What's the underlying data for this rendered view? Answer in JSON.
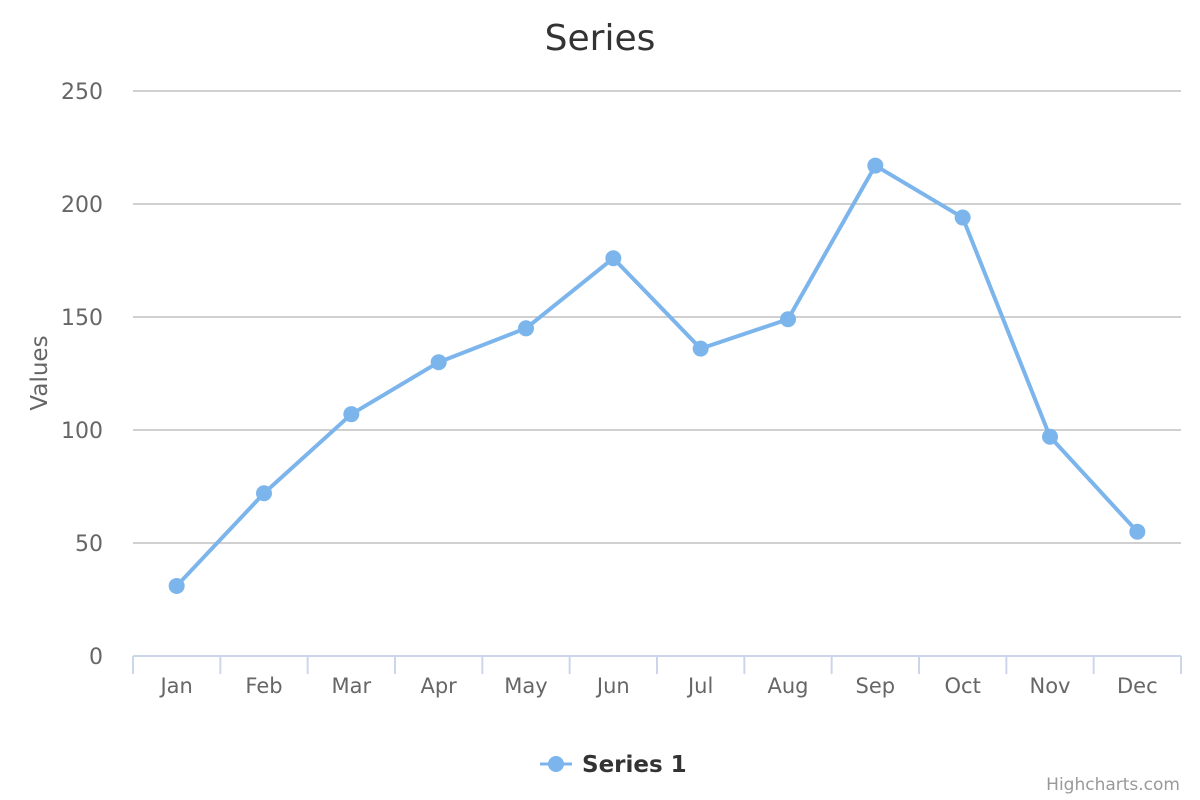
{
  "chart_data": {
    "type": "line",
    "title": "Series",
    "xlabel": "",
    "ylabel": "Values",
    "categories": [
      "Jan",
      "Feb",
      "Mar",
      "Apr",
      "May",
      "Jun",
      "Jul",
      "Aug",
      "Sep",
      "Oct",
      "Nov",
      "Dec"
    ],
    "ylim": [
      0,
      250
    ],
    "yticks": [
      0,
      50,
      100,
      150,
      200,
      250
    ],
    "grid": true,
    "legend_position": "bottom-center",
    "series": [
      {
        "name": "Series 1",
        "color": "#7cb5ec",
        "values": [
          31,
          72,
          107,
          130,
          145,
          176,
          136,
          149,
          217,
          194,
          97,
          55
        ]
      }
    ]
  },
  "credits": "Highcharts.com",
  "colors": {
    "gridline": "#c0c0c0",
    "axis_line": "#ccd6eb",
    "series": "#7cb5ec"
  }
}
